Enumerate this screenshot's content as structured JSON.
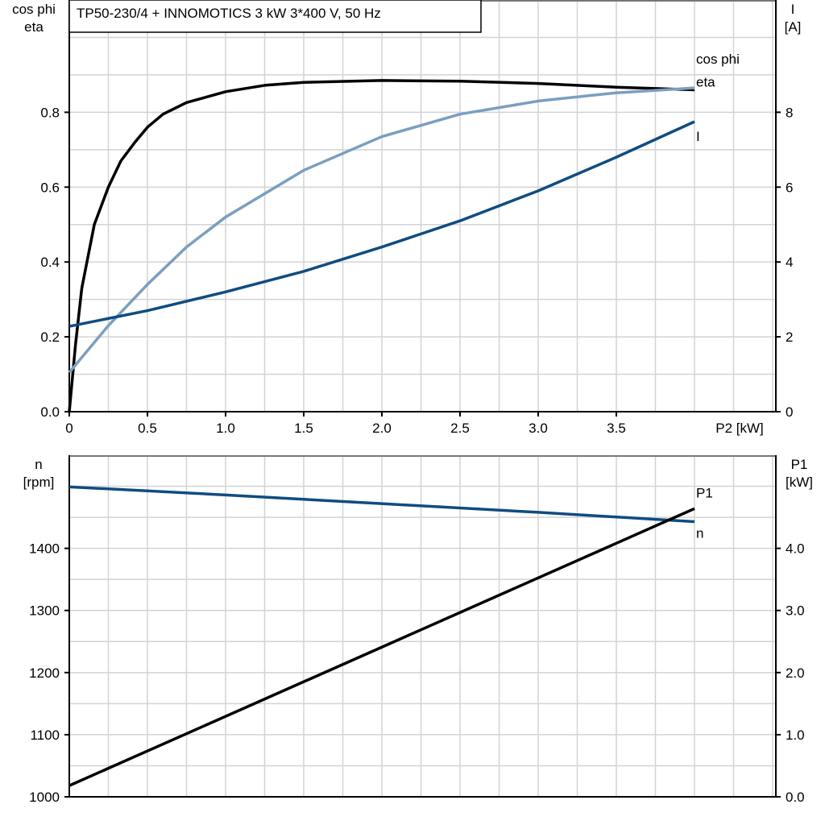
{
  "chart_data": [
    {
      "type": "line",
      "title": "TP50-230/4 + INNOMOTICS   3 kW   3*400 V, 50 Hz",
      "xlabel": "P2 [kW]",
      "ylabel_left": [
        "cos phi",
        "eta"
      ],
      "ylabel_right": [
        "I",
        "[A]"
      ],
      "xlim": [
        0,
        4.52
      ],
      "ylim_left": [
        0,
        1.1
      ],
      "ylim_right": [
        0,
        11
      ],
      "x_ticks": [
        "0",
        "0.5",
        "1.0",
        "1.5",
        "2.0",
        "2.5",
        "3.0",
        "3.5"
      ],
      "y_left_ticks": [
        "0.0",
        "0.2",
        "0.4",
        "0.6",
        "0.8"
      ],
      "y_right_ticks": [
        "0",
        "2",
        "4",
        "6",
        "8"
      ],
      "grid": true,
      "series": [
        {
          "name": "eta",
          "axis": "left",
          "color": "#000000",
          "x": [
            0,
            0.04,
            0.08,
            0.16,
            0.25,
            0.33,
            0.42,
            0.5,
            0.6,
            0.75,
            1.0,
            1.25,
            1.5,
            2.0,
            2.5,
            3.0,
            3.5,
            4.0
          ],
          "y": [
            0,
            0.18,
            0.33,
            0.5,
            0.6,
            0.67,
            0.72,
            0.76,
            0.795,
            0.826,
            0.855,
            0.872,
            0.88,
            0.885,
            0.883,
            0.877,
            0.867,
            0.86
          ]
        },
        {
          "name": "cos phi",
          "axis": "left",
          "color": "#7a9fc0",
          "x": [
            0,
            0.25,
            0.5,
            0.75,
            1.0,
            1.5,
            2.0,
            2.5,
            3.0,
            3.5,
            4.0
          ],
          "y": [
            0.105,
            0.23,
            0.34,
            0.44,
            0.52,
            0.645,
            0.735,
            0.795,
            0.83,
            0.852,
            0.865
          ]
        },
        {
          "name": "I",
          "axis": "right",
          "color": "#0f4c81",
          "x": [
            0,
            0.5,
            1.0,
            1.5,
            2.0,
            2.5,
            3.0,
            3.5,
            4.0
          ],
          "y": [
            2.28,
            2.7,
            3.2,
            3.75,
            4.4,
            5.1,
            5.9,
            6.8,
            7.75
          ]
        }
      ]
    },
    {
      "type": "line",
      "ylabel_left": [
        "n",
        "[rpm]"
      ],
      "ylabel_right": [
        "P1",
        "[kW]"
      ],
      "xlim": [
        0,
        4.52
      ],
      "ylim_left": [
        1000,
        1550
      ],
      "ylim_right": [
        0,
        5.5
      ],
      "y_left_ticks": [
        "1000",
        "1100",
        "1200",
        "1300",
        "1400"
      ],
      "y_right_ticks": [
        "0.0",
        "1.0",
        "2.0",
        "3.0",
        "4.0"
      ],
      "grid": true,
      "series": [
        {
          "name": "n",
          "axis": "left",
          "color": "#0f4c81",
          "x": [
            0,
            1,
            2,
            3,
            4
          ],
          "y": [
            1499,
            1486,
            1472,
            1458,
            1443
          ]
        },
        {
          "name": "P1",
          "axis": "right",
          "color": "#000000",
          "x": [
            0,
            4
          ],
          "y": [
            0.18,
            4.64
          ]
        }
      ]
    }
  ]
}
